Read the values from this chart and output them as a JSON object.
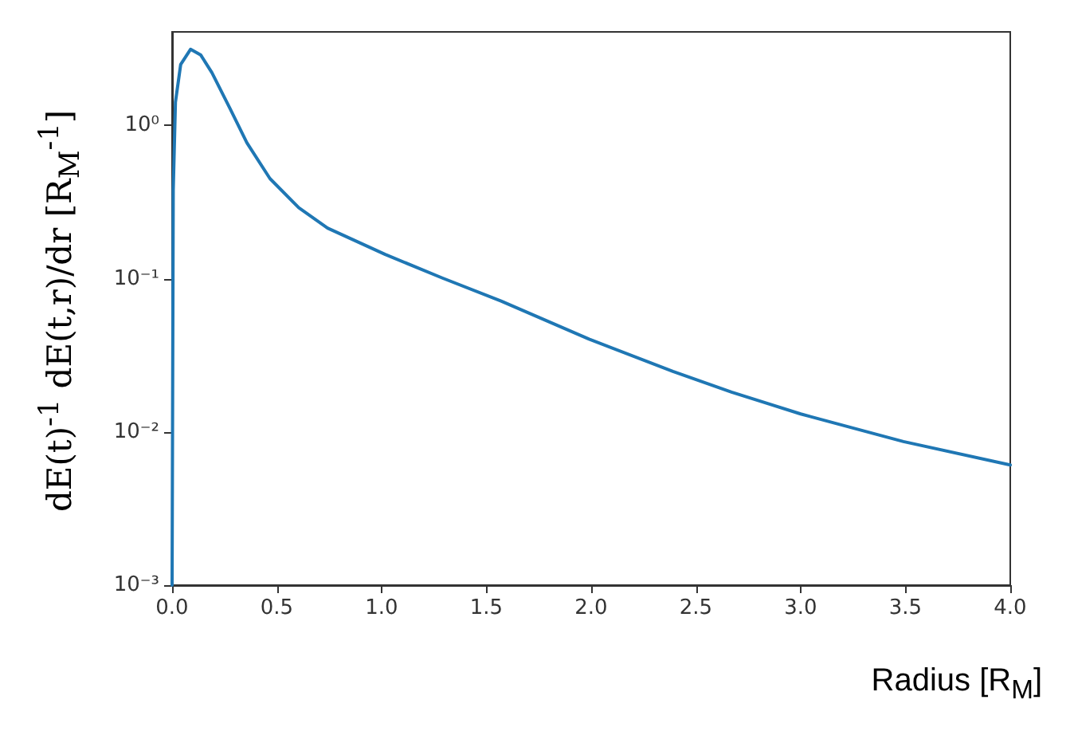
{
  "chart_data": {
    "type": "line",
    "xlabel": "Radius [R$_{M}$]",
    "ylabel": "dE(t)$^{-1}$ dE(t,r)/dr [R$_{M}$$^{-1}$]",
    "x": [
      0,
      0.0055,
      0.016,
      0.041,
      0.088,
      0.137,
      0.19,
      0.275,
      0.357,
      0.467,
      0.605,
      0.742,
      1.017,
      1.29,
      1.57,
      1.99,
      2.39,
      2.67,
      3.0,
      3.49,
      4.0
    ],
    "series": [
      {
        "color": "#1f77b4",
        "values": [
          0.001,
          0.38,
          1.42,
          2.5,
          3.14,
          2.88,
          2.21,
          1.3,
          0.77,
          0.45,
          0.29,
          0.214,
          0.144,
          0.101,
          0.0714,
          0.0403,
          0.0248,
          0.0182,
          0.0131,
          0.00865,
          0.00608
        ]
      }
    ],
    "log": "y",
    "xlim": [
      0,
      4
    ],
    "xticks": [
      {
        "value": 0,
        "label": "0.0"
      },
      0.5,
      {
        "value": 1,
        "label": "1.0"
      },
      1.5,
      {
        "value": 2,
        "label": "2.0"
      },
      2.5,
      {
        "value": 3,
        "label": "3.0"
      },
      3.5,
      {
        "value": 4,
        "label": "4.0"
      }
    ],
    "ylim": [
      0.001,
      4.08
    ],
    "yticks": [
      {
        "value": 0.001,
        "label": "10⁻³"
      },
      {
        "value": 0.01,
        "label": "10⁻²"
      },
      {
        "value": 0.1,
        "label": "10⁻¹"
      },
      {
        "value": 1,
        "label": "10⁰"
      }
    ],
    "grid": false,
    "marker": "none",
    "line_style": "solid"
  }
}
